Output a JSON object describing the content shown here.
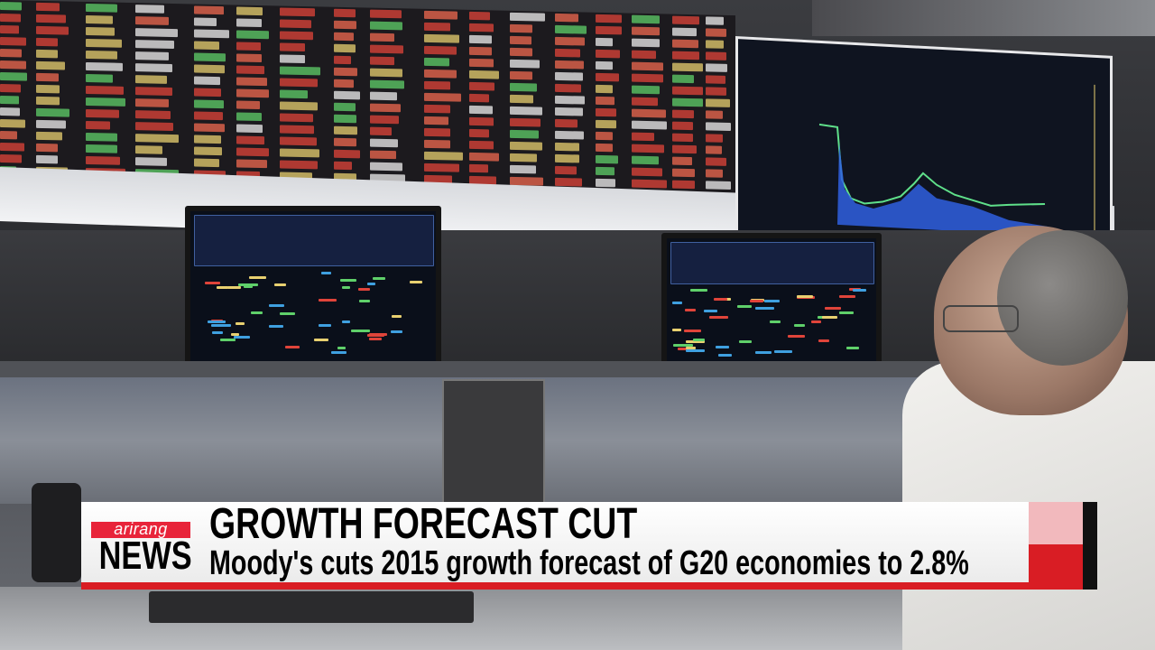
{
  "broadcast": {
    "logo": {
      "brand": "arirang",
      "program": "NEWS"
    },
    "headline": "GROWTH FORECAST CUT",
    "subheadline": "Moody's cuts 2015 growth forecast of G20 economies to 2.8%",
    "colors": {
      "accent_red": "#d91d24",
      "logo_red": "#e8243a",
      "band": "#ffffff",
      "text": "#000000"
    }
  }
}
